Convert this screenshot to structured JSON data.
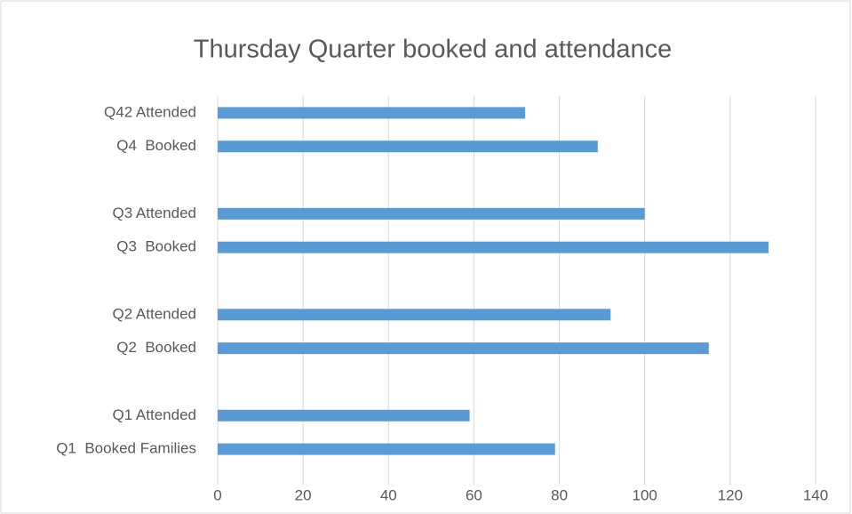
{
  "chart_data": {
    "type": "bar",
    "orientation": "horizontal",
    "title": "Thursday Quarter booked and attendance",
    "categories": [
      "Q1  Booked Families",
      "Q1 Attended",
      null,
      "Q2  Booked",
      "Q2 Attended",
      null,
      "Q3  Booked",
      "Q3 Attended",
      null,
      "Q4  Booked",
      "Q42 Attended"
    ],
    "values": [
      79,
      59,
      null,
      115,
      92,
      null,
      129,
      100,
      null,
      89,
      72
    ],
    "color": "#5b9bd5",
    "xlim": [
      0,
      140
    ],
    "xticks": [
      0,
      20,
      40,
      60,
      80,
      100,
      120,
      140
    ],
    "grid": true
  }
}
